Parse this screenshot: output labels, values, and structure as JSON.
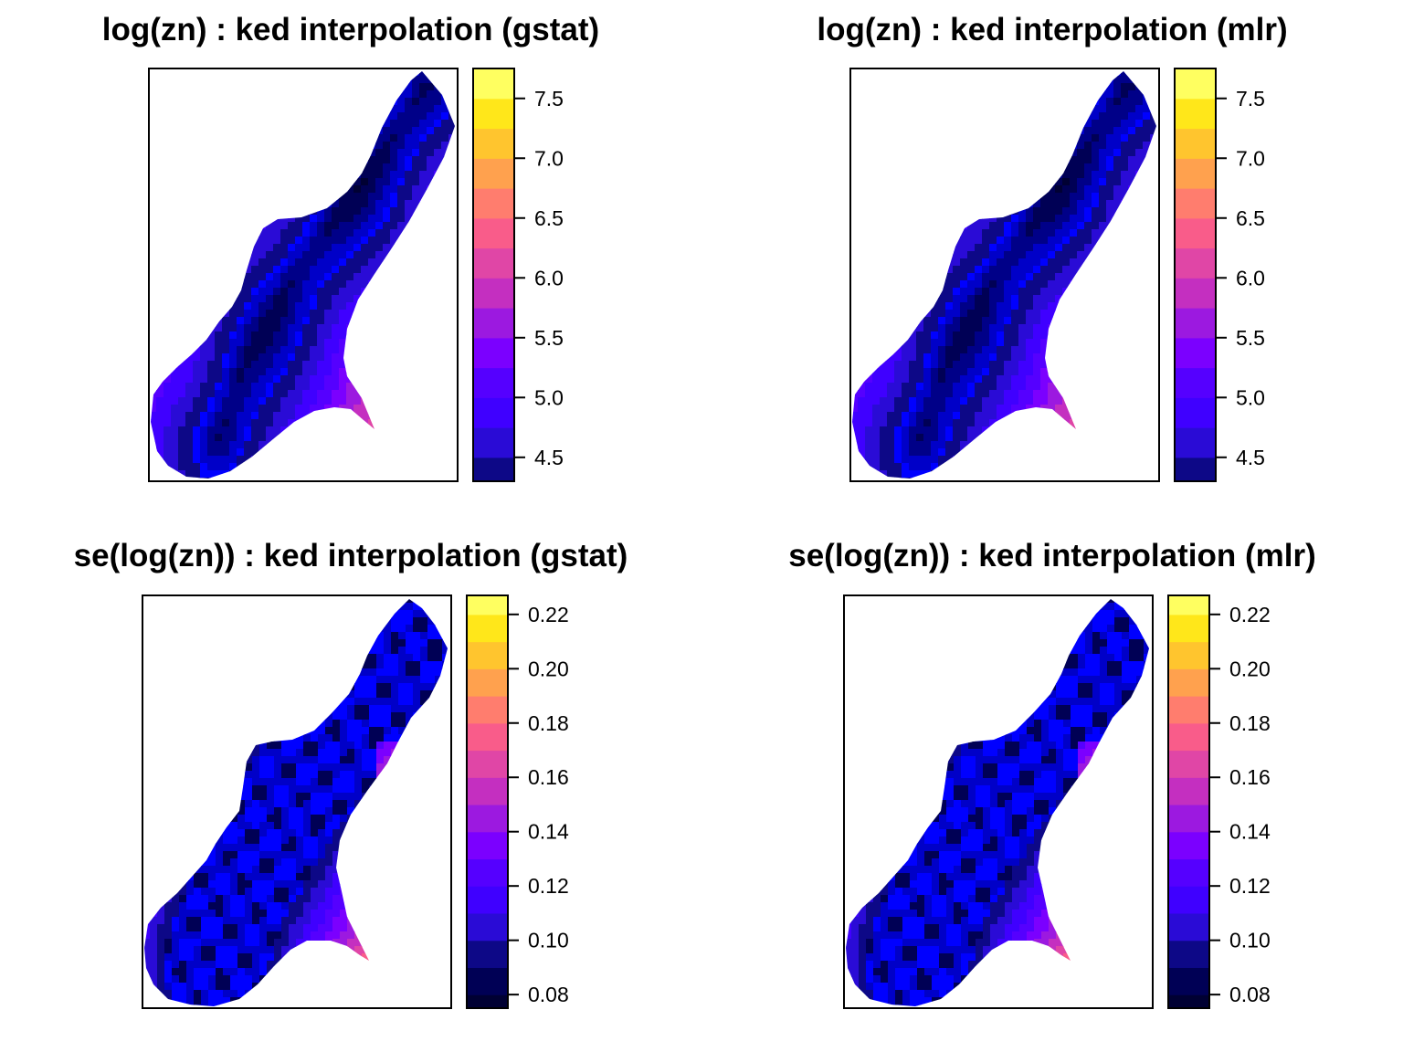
{
  "palette": [
    "#0D0887",
    "#2A0BD6",
    "#3F00FF",
    "#5500FF",
    "#7B00FF",
    "#9C19E0",
    "#C42FC0",
    "#E046A6",
    "#F95C8A",
    "#FF7D6E",
    "#FFA14E",
    "#FFC52E",
    "#FFE71A",
    "#FFFF60"
  ],
  "palette_dark": [
    "#000033",
    "#000055",
    "#000088",
    "#0000C8",
    "#0000FF"
  ],
  "chart_data": [
    {
      "type": "heatmap",
      "title": "log(zn) : ked interpolation (gstat)",
      "variable": "log(zn)",
      "legend": {
        "breaks": [
          4.3,
          4.5,
          4.75,
          5.0,
          5.25,
          5.5,
          5.75,
          6.0,
          6.25,
          6.5,
          6.75,
          7.0,
          7.25,
          7.5,
          7.75
        ],
        "ticks": [
          4.5,
          5.0,
          5.5,
          6.0,
          6.5,
          7.0,
          7.5
        ],
        "tick_labels": [
          "4.5",
          "5.0",
          "5.5",
          "6.0",
          "6.5",
          "7.0",
          "7.5"
        ],
        "range": [
          4.3,
          7.75
        ]
      }
    },
    {
      "type": "heatmap",
      "title": "log(zn) : ked interpolation (mlr)",
      "variable": "log(zn)",
      "legend": {
        "breaks": [
          4.3,
          4.5,
          4.75,
          5.0,
          5.25,
          5.5,
          5.75,
          6.0,
          6.25,
          6.5,
          6.75,
          7.0,
          7.25,
          7.5,
          7.75
        ],
        "ticks": [
          4.5,
          5.0,
          5.5,
          6.0,
          6.5,
          7.0,
          7.5
        ],
        "tick_labels": [
          "4.5",
          "5.0",
          "5.5",
          "6.0",
          "6.5",
          "7.0",
          "7.5"
        ],
        "range": [
          4.3,
          7.75
        ]
      }
    },
    {
      "type": "heatmap",
      "title": "se(log(zn)) : ked interpolation (gstat)",
      "variable": "se(log(zn))",
      "legend": {
        "breaks": [
          0.075,
          0.08,
          0.09,
          0.1,
          0.11,
          0.12,
          0.13,
          0.14,
          0.15,
          0.16,
          0.17,
          0.18,
          0.19,
          0.2,
          0.21,
          0.22,
          0.227
        ],
        "ticks": [
          0.08,
          0.1,
          0.12,
          0.14,
          0.16,
          0.18,
          0.2,
          0.22
        ],
        "tick_labels": [
          "0.08",
          "0.10",
          "0.12",
          "0.14",
          "0.16",
          "0.18",
          "0.20",
          "0.22"
        ],
        "range": [
          0.075,
          0.227
        ]
      }
    },
    {
      "type": "heatmap",
      "title": "se(log(zn)) : ked interpolation (mlr)",
      "variable": "se(log(zn))",
      "legend": {
        "breaks": [
          0.075,
          0.08,
          0.09,
          0.1,
          0.11,
          0.12,
          0.13,
          0.14,
          0.15,
          0.16,
          0.17,
          0.18,
          0.19,
          0.2,
          0.21,
          0.22,
          0.227
        ],
        "ticks": [
          0.08,
          0.1,
          0.12,
          0.14,
          0.16,
          0.18,
          0.2,
          0.22
        ],
        "tick_labels": [
          "0.08",
          "0.10",
          "0.12",
          "0.14",
          "0.16",
          "0.18",
          "0.20",
          "0.22"
        ],
        "range": [
          0.075,
          0.227
        ]
      }
    }
  ]
}
